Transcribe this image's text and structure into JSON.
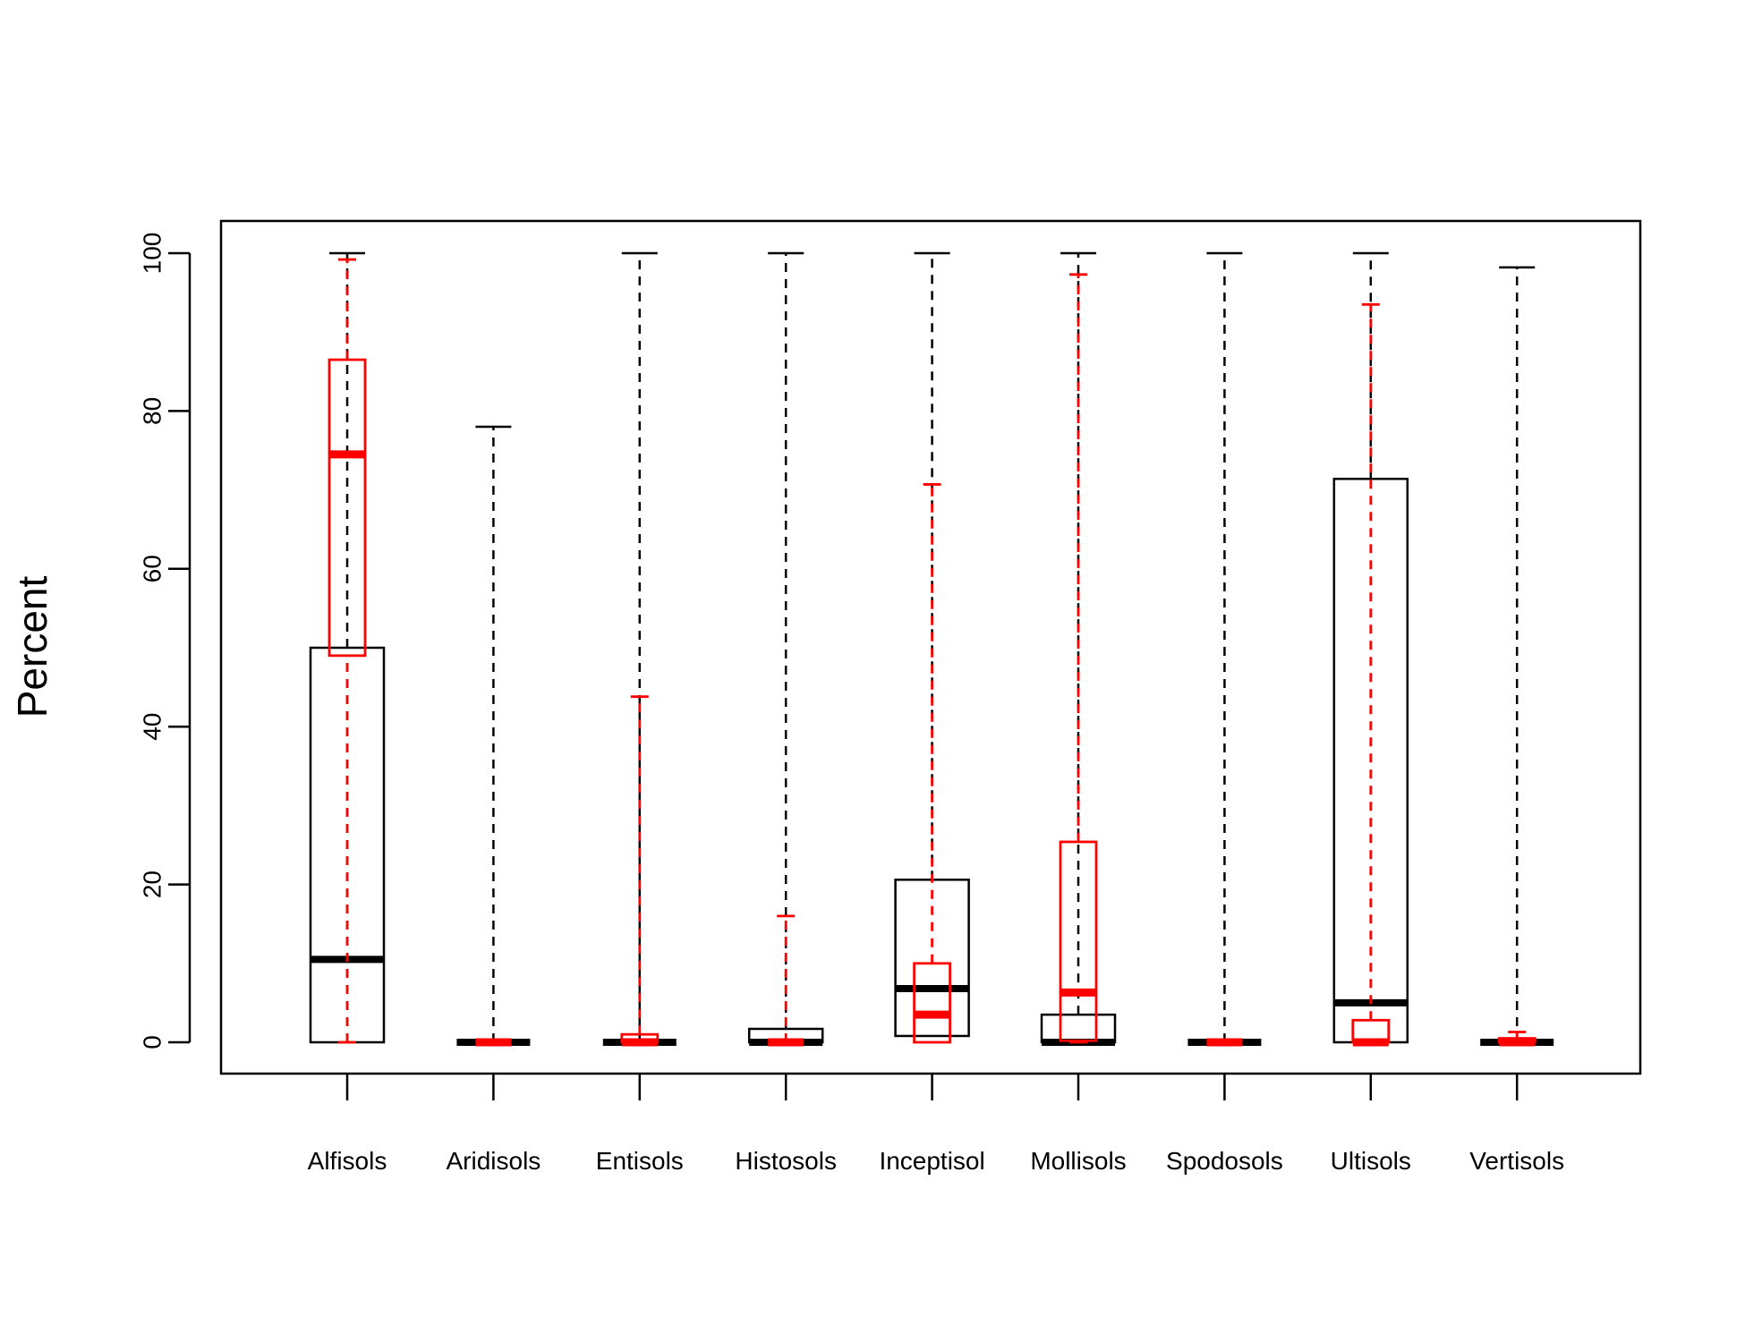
{
  "chart_data": {
    "type": "boxplot",
    "ylabel": "Percent",
    "ylim": [
      -4,
      104
    ],
    "yticks": [
      0,
      20,
      40,
      60,
      80,
      100
    ],
    "categories": [
      "Alfisols",
      "Aridisols",
      "Entisols",
      "Histosols",
      "Inceptisol",
      "Mollisols",
      "Spodosols",
      "Ultisols",
      "Vertisols"
    ],
    "grid": false,
    "legend": "none",
    "series": [
      {
        "color": "#000000",
        "boxes": [
          {
            "min": 0,
            "q1": 0,
            "median": 10.5,
            "q3": 50,
            "max": 100
          },
          {
            "min": 0,
            "q1": 0,
            "median": 0,
            "q3": 0,
            "max": 78
          },
          {
            "min": 0,
            "q1": 0,
            "median": 0,
            "q3": 0,
            "max": 100
          },
          {
            "min": 0,
            "q1": 0,
            "median": 0,
            "q3": 1.7,
            "max": 100
          },
          {
            "min": 0.8,
            "q1": 0.8,
            "median": 6.8,
            "q3": 20.6,
            "max": 100
          },
          {
            "min": 0,
            "q1": 0,
            "median": 0,
            "q3": 3.5,
            "max": 100
          },
          {
            "min": 0,
            "q1": 0,
            "median": 0,
            "q3": 0,
            "max": 100
          },
          {
            "min": 0,
            "q1": 0,
            "median": 5,
            "q3": 71.4,
            "max": 100
          },
          {
            "min": 0,
            "q1": 0,
            "median": 0,
            "q3": 0,
            "max": 98.2
          }
        ]
      },
      {
        "color": "#ff0000",
        "boxes": [
          {
            "min": 0,
            "q1": 49,
            "median": 74.5,
            "q3": 86.5,
            "max": 99.2
          },
          {
            "min": 0,
            "q1": 0,
            "median": 0,
            "q3": 0,
            "max": 0
          },
          {
            "min": 0,
            "q1": 0,
            "median": 0,
            "q3": 1,
            "max": 43.8
          },
          {
            "min": 0,
            "q1": 0,
            "median": 0,
            "q3": 0,
            "max": 16
          },
          {
            "min": 0,
            "q1": 0,
            "median": 3.5,
            "q3": 10,
            "max": 70.7
          },
          {
            "min": 0,
            "q1": 0.2,
            "median": 6.3,
            "q3": 25.4,
            "max": 97.3
          },
          {
            "min": 0,
            "q1": 0,
            "median": 0,
            "q3": 0,
            "max": 0
          },
          {
            "min": 0,
            "q1": 0,
            "median": 0,
            "q3": 2.8,
            "max": 93.5
          },
          {
            "min": 0,
            "q1": 0,
            "median": 0,
            "q3": 0.5,
            "max": 1.3
          }
        ]
      }
    ]
  }
}
